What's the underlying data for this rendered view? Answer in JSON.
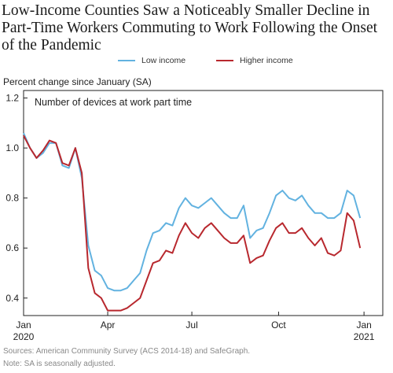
{
  "title": "Low-Income Counties Saw a Noticeably Smaller Decline in Part-Time Workers Commuting to Work Following the Onset of the Pandemic",
  "source": "Sources: American Community Survey (ACS 2014-18) and SafeGraph.",
  "note": "Note: SA is seasonally adjusted.",
  "chart_data": {
    "type": "line",
    "ylabel": "Percent change since January (SA)",
    "inner_title": "Number of devices at work part time",
    "ylim": [
      0.33,
      1.23
    ],
    "yticks": [
      0.4,
      0.6,
      0.8,
      1.0,
      1.2
    ],
    "ytick_labels": [
      "0.4",
      "0.6",
      "0.8",
      "1.0",
      "1.2"
    ],
    "xlim": [
      0,
      55.5
    ],
    "xticks": [
      {
        "x": 0,
        "label": "Jan",
        "year": "2020"
      },
      {
        "x": 13,
        "label": "Apr",
        "year": ""
      },
      {
        "x": 26,
        "label": "Jul",
        "year": ""
      },
      {
        "x": 39.4,
        "label": "Oct",
        "year": ""
      },
      {
        "x": 52.6,
        "label": "Jan",
        "year": "2021"
      }
    ],
    "legend_position": "top",
    "series": [
      {
        "name": "Low income",
        "color": "#62b2e0",
        "values": [
          1.06,
          1.0,
          0.96,
          0.98,
          1.02,
          1.02,
          0.93,
          0.92,
          1.0,
          0.88,
          0.61,
          0.51,
          0.49,
          0.44,
          0.43,
          0.43,
          0.44,
          0.47,
          0.5,
          0.59,
          0.66,
          0.67,
          0.7,
          0.69,
          0.76,
          0.8,
          0.77,
          0.76,
          0.78,
          0.8,
          0.77,
          0.74,
          0.72,
          0.72,
          0.77,
          0.64,
          0.67,
          0.68,
          0.74,
          0.81,
          0.83,
          0.8,
          0.79,
          0.81,
          0.77,
          0.74,
          0.74,
          0.72,
          0.72,
          0.74,
          0.83,
          0.81,
          0.72
        ]
      },
      {
        "name": "Higher income",
        "color": "#b8282e",
        "values": [
          1.05,
          1.0,
          0.96,
          0.99,
          1.03,
          1.02,
          0.94,
          0.93,
          1.0,
          0.9,
          0.52,
          0.42,
          0.4,
          0.35,
          0.35,
          0.35,
          0.36,
          0.38,
          0.4,
          0.47,
          0.54,
          0.55,
          0.59,
          0.58,
          0.65,
          0.7,
          0.66,
          0.64,
          0.68,
          0.7,
          0.67,
          0.64,
          0.62,
          0.62,
          0.65,
          0.54,
          0.56,
          0.57,
          0.63,
          0.68,
          0.7,
          0.66,
          0.66,
          0.68,
          0.64,
          0.61,
          0.64,
          0.58,
          0.57,
          0.59,
          0.74,
          0.71,
          0.6
        ]
      }
    ]
  }
}
